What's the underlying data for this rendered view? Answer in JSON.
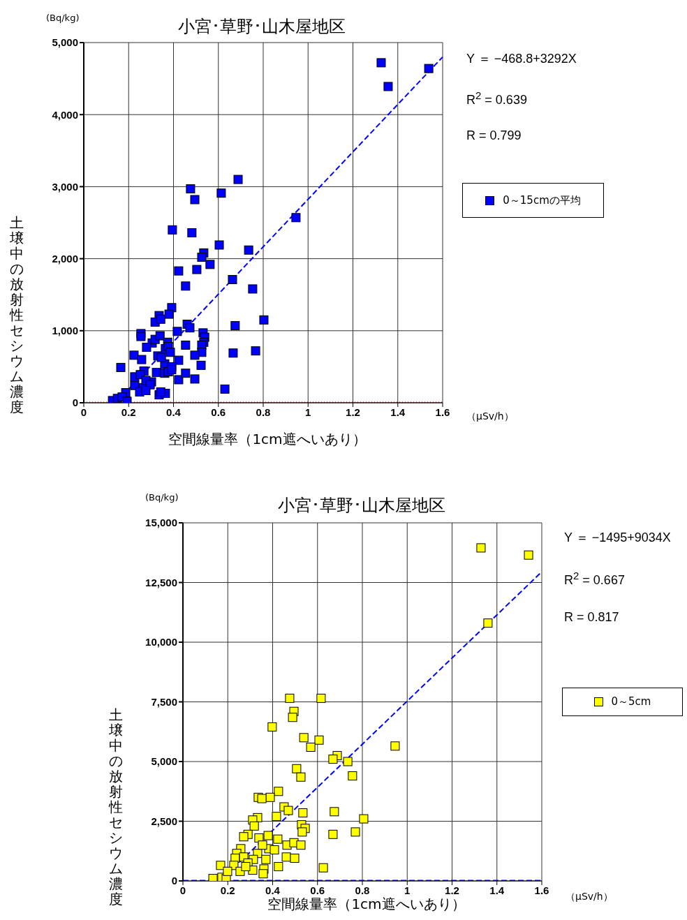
{
  "chart_data": [
    {
      "type": "scatter",
      "title": "小宮･草野･山木屋地区",
      "xlabel": "空間線量率（1cm遮へいあり）",
      "ylabel": "土壌中の放射性セシウム濃度",
      "annotations": [
        "(Bq/kg)",
        "（μSv/h）",
        "Y ＝ −468.8+3292X",
        "R$^{2}$ = 0.639",
        "R = 0.799"
      ],
      "xlim": [
        0,
        1.6
      ],
      "xticks": [
        0,
        0.2,
        0.4,
        0.6,
        0.8,
        1,
        1.2,
        1.4,
        1.6
      ],
      "ylim": [
        0,
        5000
      ],
      "yticks": [
        {
          "value": 0,
          "label": "0"
        },
        {
          "value": 1000,
          "label": "1,000"
        },
        {
          "value": 2000,
          "label": "2,000"
        },
        {
          "value": 3000,
          "label": "3,000"
        },
        {
          "value": 4000,
          "label": "4,000"
        },
        {
          "value": 5000,
          "label": "5,000"
        }
      ],
      "grid": true,
      "legend": "right",
      "marker": "square",
      "ref_lines": [
        {
          "axis": "y",
          "value": 0,
          "color": "#ff0000",
          "line_style": "dotted"
        }
      ],
      "series": [
        {
          "name": "0～15cmの平均",
          "color": "#0000ff",
          "x": [
            1.326,
            1.357,
            1.538,
            0.688,
            0.476,
            0.613,
            0.495,
            0.395,
            0.482,
            0.604,
            0.946,
            0.735,
            0.535,
            0.526,
            0.563,
            0.504,
            0.423,
            0.663,
            0.454,
            0.753,
            0.803,
            0.392,
            0.38,
            0.336,
            0.318,
            0.343,
            0.675,
            0.461,
            0.473,
            0.417,
            0.255,
            0.255,
            0.532,
            0.539,
            0.535,
            0.526,
            0.766,
            0.666,
            0.526,
            0.305,
            0.318,
            0.34,
            0.374,
            0.454,
            0.364,
            0.28,
            0.224,
            0.33,
            0.377,
            0.361,
            0.523,
            0.495,
            0.423,
            0.346,
            0.386,
            0.392,
            0.258,
            0.165,
            0.268,
            0.324,
            0.423,
            0.495,
            0.454,
            0.629,
            0.227,
            0.252,
            0.302,
            0.361,
            0.377,
            0.392,
            0.227,
            0.265,
            0.277,
            0.249,
            0.336,
            0.364,
            0.343,
            0.296,
            0.277,
            0.187,
            0.128,
            0.15,
            0.171,
            0.193
          ],
          "values": [
            4720,
            4390,
            4640,
            3100,
            2970,
            2910,
            2820,
            2400,
            2360,
            2190,
            2570,
            2120,
            2080,
            2020,
            1920,
            1850,
            1830,
            1710,
            1620,
            1580,
            1150,
            1320,
            1230,
            1210,
            1120,
            1160,
            1070,
            1090,
            1040,
            990,
            960,
            920,
            970,
            910,
            840,
            800,
            720,
            690,
            700,
            830,
            880,
            930,
            840,
            800,
            750,
            770,
            660,
            650,
            780,
            540,
            520,
            660,
            590,
            630,
            700,
            500,
            600,
            490,
            440,
            420,
            320,
            330,
            410,
            190,
            360,
            390,
            290,
            410,
            430,
            460,
            240,
            210,
            310,
            150,
            110,
            130,
            150,
            250,
            170,
            140,
            30,
            60,
            80,
            20
          ]
        },
        {
          "type": "line",
          "color": "#0000ff",
          "line_style": "dashed",
          "marker": "none",
          "x": [
            0.2,
            1.6
          ],
          "values": [
            190,
            4800
          ]
        }
      ]
    },
    {
      "type": "scatter",
      "title": "小宮･草野･山木屋地区",
      "xlabel": "空間線量率（1cm遮へいあり）",
      "ylabel": "土壌中の放射性セシウム濃度",
      "annotations": [
        "(Bq/kg)",
        "（μSv/h）",
        "Y ＝ −1495+9034X",
        "R$^{2}$ = 0.667",
        "R = 0.817"
      ],
      "xlim": [
        0,
        1.6
      ],
      "xticks": [
        0,
        0.2,
        0.4,
        0.6,
        0.8,
        1,
        1.2,
        1.4,
        1.6
      ],
      "ylim": [
        0,
        15000
      ],
      "yticks": [
        {
          "value": 0,
          "label": "0"
        },
        {
          "value": 2500,
          "label": "2,500"
        },
        {
          "value": 5000,
          "label": "5,000"
        },
        {
          "value": 7500,
          "label": "7,500"
        },
        {
          "value": 10000,
          "label": "10,000"
        },
        {
          "value": 12500,
          "label": "12,500"
        },
        {
          "value": 15000,
          "label": "15,000"
        }
      ],
      "grid": true,
      "legend": "right",
      "marker": "square",
      "ref_lines": [
        {
          "axis": "y",
          "value": 0,
          "color": "#0000ff",
          "line_style": "dashed"
        }
      ],
      "series": [
        {
          "name": "0～5cm",
          "color": "#ffff00",
          "x": [
            1.329,
            1.541,
            1.36,
            0.476,
            0.616,
            0.495,
            0.489,
            0.398,
            0.539,
            0.607,
            0.57,
            0.946,
            0.688,
            0.669,
            0.735,
            0.507,
            0.526,
            0.756,
            0.426,
            0.336,
            0.389,
            0.352,
            0.451,
            0.47,
            0.675,
            0.535,
            0.806,
            0.417,
            0.333,
            0.311,
            0.318,
            0.529,
            0.545,
            0.532,
            0.669,
            0.769,
            0.29,
            0.271,
            0.38,
            0.339,
            0.423,
            0.258,
            0.464,
            0.495,
            0.526,
            0.333,
            0.383,
            0.355,
            0.408,
            0.461,
            0.498,
            0.24,
            0.233,
            0.271,
            0.314,
            0.37,
            0.29,
            0.426,
            0.626,
            0.227,
            0.168,
            0.255,
            0.311,
            0.361,
            0.174,
            0.134,
            0.193,
            0.199,
            0.28,
            0.358
          ],
          "values": [
            13950,
            13650,
            10800,
            7650,
            7650,
            7100,
            6850,
            6450,
            6000,
            5900,
            5600,
            5650,
            5250,
            5100,
            5000,
            4700,
            4350,
            4400,
            3750,
            3500,
            3500,
            3450,
            3100,
            2950,
            2900,
            2850,
            2600,
            2700,
            2650,
            2550,
            2300,
            2350,
            2200,
            2050,
            1950,
            2050,
            1950,
            1850,
            1900,
            1800,
            1750,
            1350,
            1500,
            1600,
            1500,
            1150,
            1350,
            1500,
            1300,
            1000,
            950,
            1150,
            950,
            1000,
            900,
            900,
            750,
            600,
            550,
            650,
            650,
            400,
            450,
            500,
            150,
            100,
            100,
            400,
            600,
            300
          ]
        },
        {
          "type": "line",
          "color": "#0000ff",
          "line_style": "dashed",
          "marker": "none",
          "x": [
            0.2,
            1.6
          ],
          "values": [
            310,
            12950
          ]
        }
      ]
    }
  ]
}
